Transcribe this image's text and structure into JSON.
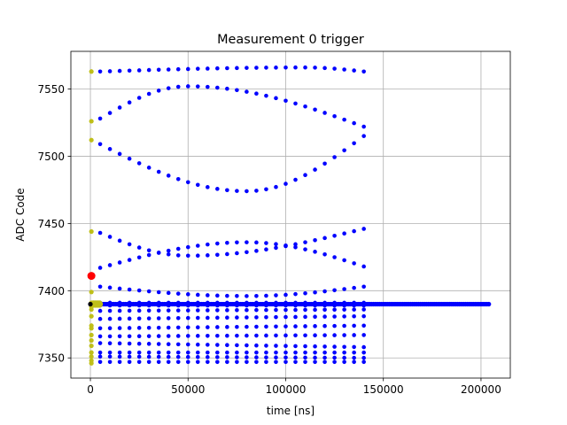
{
  "chart_data": {
    "type": "scatter",
    "title": "Measurement 0 trigger",
    "xlabel": "time [ns]",
    "ylabel": "ADC Code",
    "xlim": [
      -10000,
      215000
    ],
    "ylim": [
      7335,
      7578
    ],
    "x_ticks": [
      0,
      50000,
      100000,
      150000,
      200000
    ],
    "y_ticks": [
      7350,
      7400,
      7450,
      7500,
      7550
    ],
    "grid": true,
    "legend": "none",
    "colors": {
      "main": "#0000ff",
      "yellow": "#bfbf19",
      "red": "#ff0000",
      "dark": "#000000"
    },
    "main_series": {
      "color": "#0000ff",
      "start": 5000,
      "step": 5000,
      "end": 140000,
      "traces": [
        {
          "from": 7563,
          "to": 7563,
          "peak": 7566,
          "peakAt": 110000
        },
        {
          "from": 7528,
          "to": 7522,
          "peak": 7552,
          "peakAt": 50000
        },
        {
          "from": 7509,
          "to": 7515,
          "valley": 7474,
          "valleyAt": 80000
        },
        {
          "from": 7443,
          "to": 7446,
          "valley": 7426,
          "valleyAt": 50000
        },
        {
          "from": 7417,
          "to": 7418,
          "peak": 7436,
          "peakAt": 80000
        },
        {
          "from": 7403,
          "to": 7403,
          "valley": 7396,
          "valleyAt": 80000
        },
        {
          "from": 7391,
          "to": 7391
        },
        {
          "from": 7389,
          "to": 7389
        },
        {
          "from": 7385,
          "to": 7386
        },
        {
          "from": 7379,
          "to": 7381
        },
        {
          "from": 7372,
          "to": 7374
        },
        {
          "from": 7366,
          "to": 7367
        },
        {
          "from": 7361,
          "to": 7358
        },
        {
          "from": 7354,
          "to": 7354
        },
        {
          "from": 7351,
          "to": 7350
        },
        {
          "from": 7347,
          "to": 7347
        }
      ],
      "baseline": {
        "y": 7390,
        "from": 0,
        "to": 204000,
        "step": 1000
      }
    },
    "yellow_points": {
      "color": "#bfbf19",
      "x": 500,
      "y": [
        7563,
        7526,
        7512,
        7444,
        7399,
        7391,
        7388,
        7386,
        7381,
        7374,
        7372,
        7367,
        7363,
        7359,
        7354,
        7351,
        7348,
        7346
      ],
      "cluster": {
        "x": [
          1500,
          2500,
          3500,
          4500
        ],
        "y": 7390
      }
    },
    "red_point": {
      "x": 500,
      "y": 7411,
      "color": "#ff0000"
    },
    "dark_point": {
      "x": 0,
      "y": 7390,
      "color": "#000000"
    }
  }
}
